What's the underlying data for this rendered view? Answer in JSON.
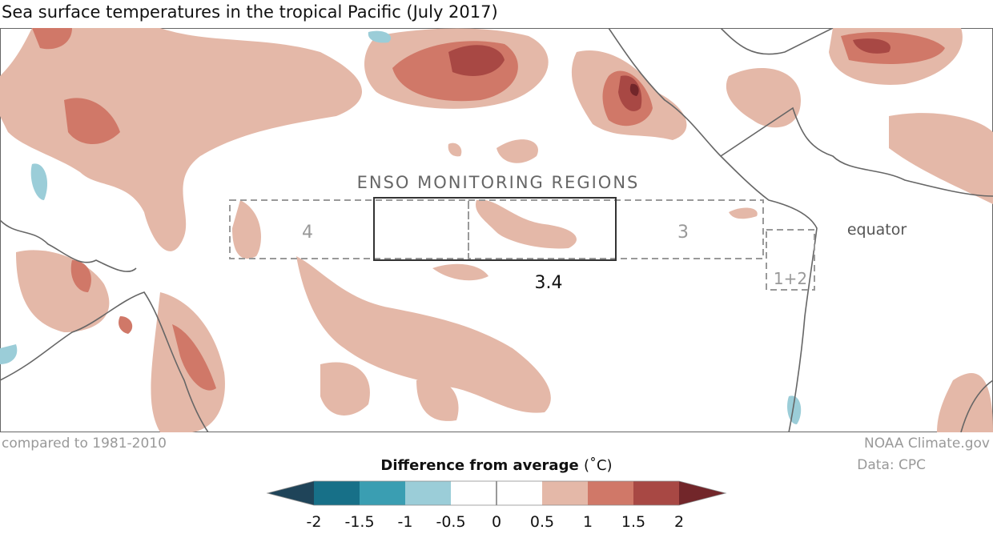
{
  "title": "Sea surface temperatures in the tropical Pacific (July 2017)",
  "map": {
    "regions_heading": "ENSO MONITORING REGIONS",
    "regions": [
      {
        "label": "4"
      },
      {
        "label": "3.4"
      },
      {
        "label": "3"
      },
      {
        "label": "1+2"
      }
    ],
    "equator_label": "equator"
  },
  "footer": {
    "baseline": "compared to 1981-2010",
    "credit": "NOAA Climate.gov",
    "source": "Data: CPC"
  },
  "legend": {
    "title": "Difference from average",
    "unit": "(˚C)",
    "ticks": [
      "-2",
      "-1.5",
      "-1",
      "-0.5",
      "0",
      "0.5",
      "1",
      "1.5",
      "2"
    ],
    "colors": [
      "#1f4459",
      "#177088",
      "#3a9eb2",
      "#9bcdd8",
      "#ffffff",
      "#ffffff",
      "#e4b8a8",
      "#d07868",
      "#a84844",
      "#72262a"
    ]
  }
}
